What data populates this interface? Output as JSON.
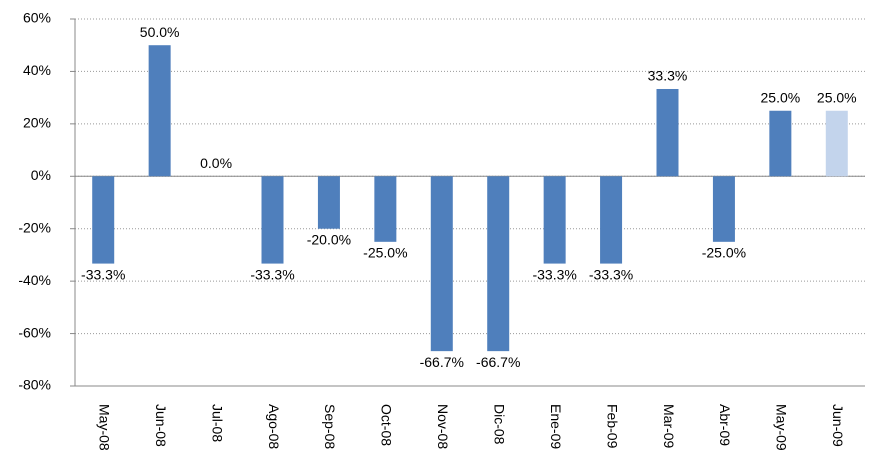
{
  "chart_data": {
    "type": "bar",
    "categories": [
      "May-08",
      "Jun-08",
      "Jul-08",
      "Ago-08",
      "Sep-08",
      "Oct-08",
      "Nov-08",
      "Dic-08",
      "Ene-09",
      "Feb-09",
      "Mar-09",
      "Abr-09",
      "May-09",
      "Jun-09"
    ],
    "values": [
      -33.3,
      50,
      0,
      -33.3,
      -20,
      -25,
      -66.7,
      -66.7,
      -33.3,
      -33.3,
      33.3,
      -25,
      25,
      25
    ],
    "value_labels": [
      "-33.3%",
      "50.0%",
      "0.0%",
      "-33.3%",
      "-20.0%",
      "-25.0%",
      "-66.7%",
      "-66.7%",
      "-33.3%",
      "-33.3%",
      "33.3%",
      "-25.0%",
      "25.0%",
      "25.0%"
    ],
    "colors": [
      "#4f7fbc",
      "#4f7fbc",
      "#4f7fbc",
      "#4f7fbc",
      "#4f7fbc",
      "#4f7fbc",
      "#4f7fbc",
      "#4f7fbc",
      "#4f7fbc",
      "#4f7fbc",
      "#4f7fbc",
      "#4f7fbc",
      "#4f7fbc",
      "#c3d4ec"
    ],
    "ylim": [
      -80,
      60
    ],
    "yticks": [
      {
        "value": -80,
        "label": "-80%"
      },
      {
        "value": -60,
        "label": "-60%"
      },
      {
        "value": -40,
        "label": "-40%"
      },
      {
        "value": -20,
        "label": "-20%"
      },
      {
        "value": 0,
        "label": "0%"
      },
      {
        "value": 20,
        "label": "20%"
      },
      {
        "value": 40,
        "label": "40%"
      },
      {
        "value": 60,
        "label": "60%"
      }
    ],
    "grid": true
  }
}
